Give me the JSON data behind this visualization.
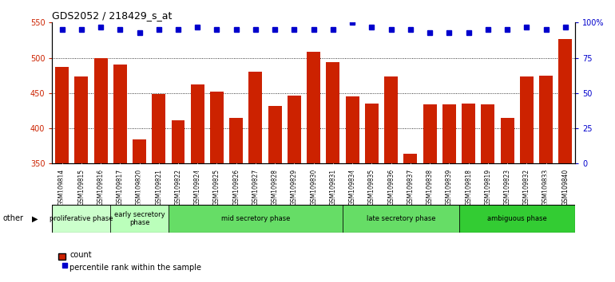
{
  "title": "GDS2052 / 218429_s_at",
  "samples": [
    "GSM109814",
    "GSM109815",
    "GSM109816",
    "GSM109817",
    "GSM109820",
    "GSM109821",
    "GSM109822",
    "GSM109824",
    "GSM109825",
    "GSM109826",
    "GSM109827",
    "GSM109828",
    "GSM109829",
    "GSM109830",
    "GSM109831",
    "GSM109834",
    "GSM109835",
    "GSM109836",
    "GSM109837",
    "GSM109838",
    "GSM109839",
    "GSM109818",
    "GSM109819",
    "GSM109823",
    "GSM109832",
    "GSM109833",
    "GSM109840"
  ],
  "counts": [
    487,
    474,
    499,
    490,
    384,
    449,
    411,
    462,
    452,
    415,
    480,
    432,
    446,
    509,
    494,
    445,
    435,
    474,
    364,
    434,
    434,
    435,
    434,
    415,
    474,
    475,
    527
  ],
  "percentile": [
    95,
    95,
    97,
    95,
    93,
    95,
    95,
    97,
    95,
    95,
    95,
    95,
    95,
    95,
    95,
    100,
    97,
    95,
    95,
    93,
    93,
    93,
    95,
    95,
    97,
    95,
    97
  ],
  "bar_color": "#cc2200",
  "dot_color": "#0000cc",
  "ylim_left": [
    350,
    550
  ],
  "ylim_right": [
    0,
    100
  ],
  "yticks_left": [
    350,
    400,
    450,
    500,
    550
  ],
  "yticks_right": [
    0,
    25,
    50,
    75,
    100
  ],
  "yticklabels_right": [
    "0",
    "25",
    "50",
    "75",
    "100%"
  ],
  "hgrid_vals": [
    400,
    450,
    500
  ],
  "legend_count_label": "count",
  "legend_pct_label": "percentile rank within the sample",
  "other_label": "other",
  "bg_color": "#ffffff",
  "phases": [
    {
      "label": "proliferative phase",
      "start": 0,
      "end": 3,
      "color": "#ccffcc"
    },
    {
      "label": "early secretory\nphase",
      "start": 3,
      "end": 6,
      "color": "#bbffbb"
    },
    {
      "label": "mid secretory phase",
      "start": 6,
      "end": 15,
      "color": "#66dd66"
    },
    {
      "label": "late secretory phase",
      "start": 15,
      "end": 21,
      "color": "#66dd66"
    },
    {
      "label": "ambiguous phase",
      "start": 21,
      "end": 27,
      "color": "#33cc33"
    }
  ]
}
